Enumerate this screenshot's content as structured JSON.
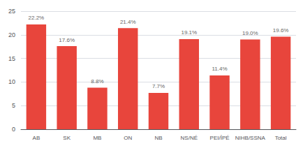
{
  "chart_data": {
    "type": "bar",
    "categories": [
      "AB",
      "SK",
      "MB",
      "ON",
      "NB",
      "NS/NÉ",
      "PEI/ÎPÉ",
      "NIHB/SSNA",
      "Total"
    ],
    "values": [
      22.2,
      17.6,
      8.8,
      21.4,
      7.7,
      19.1,
      11.4,
      19.0,
      19.6
    ],
    "value_labels": [
      "22.2%",
      "17.6%",
      "8.8%",
      "21.4%",
      "7.7%",
      "19.1%",
      "11.4%",
      "19.0%",
      "19.6%"
    ],
    "color": "#e8453c",
    "ylim": [
      0,
      25
    ],
    "yticks": [
      0,
      5,
      10,
      15,
      20,
      25
    ],
    "grid": true
  }
}
